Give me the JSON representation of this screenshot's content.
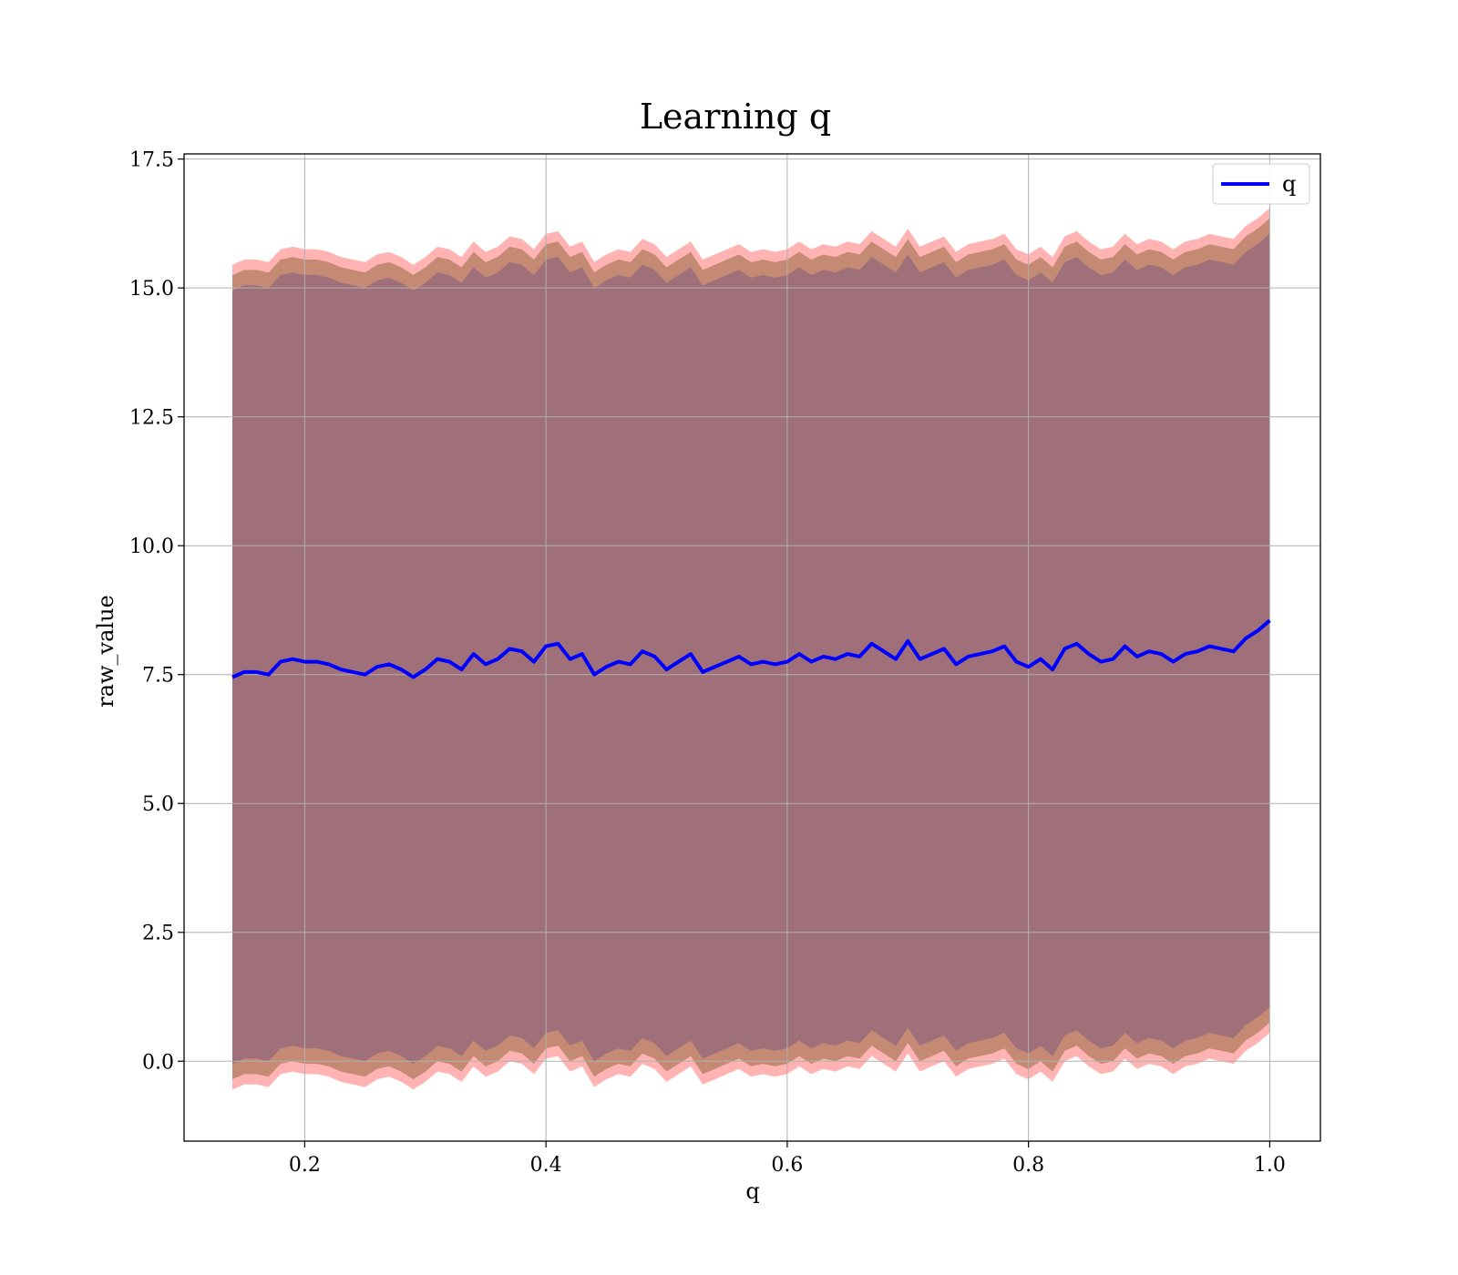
{
  "chart_data": {
    "type": "line",
    "title": "Learning q",
    "xlabel": "q",
    "ylabel": "raw_value",
    "xlim": [
      0.1,
      1.042
    ],
    "ylim": [
      -1.55,
      17.6
    ],
    "xticks": [
      0.2,
      0.4,
      0.6,
      0.8,
      1.0
    ],
    "xtick_labels": [
      "0.2",
      "0.4",
      "0.6",
      "0.8",
      "1.0"
    ],
    "yticks": [
      0.0,
      2.5,
      5.0,
      7.5,
      10.0,
      12.5,
      15.0,
      17.5
    ],
    "ytick_labels": [
      "0.0",
      "2.5",
      "5.0",
      "7.5",
      "10.0",
      "12.5",
      "15.0",
      "17.5"
    ],
    "grid": true,
    "legend": {
      "placement": "top-right",
      "entries": [
        "q"
      ]
    },
    "colors": {
      "line": "#0000ff",
      "band_outer": "#ff9a9a",
      "band_mid": "#c48a74",
      "band_inner": "#a0707a",
      "grid": "#b0b0b0"
    },
    "bands": {
      "inner_halfwidth": 7.5,
      "mid_halfwidth": 7.8,
      "outer_halfwidth": 8.0
    },
    "series": [
      {
        "name": "q",
        "x": [
          0.14,
          0.15,
          0.16,
          0.17,
          0.18,
          0.19,
          0.2,
          0.21,
          0.22,
          0.23,
          0.24,
          0.25,
          0.26,
          0.27,
          0.28,
          0.29,
          0.3,
          0.31,
          0.32,
          0.33,
          0.34,
          0.35,
          0.36,
          0.37,
          0.38,
          0.39,
          0.4,
          0.41,
          0.42,
          0.43,
          0.44,
          0.45,
          0.46,
          0.47,
          0.48,
          0.49,
          0.5,
          0.51,
          0.52,
          0.53,
          0.54,
          0.55,
          0.56,
          0.57,
          0.58,
          0.59,
          0.6,
          0.61,
          0.62,
          0.63,
          0.64,
          0.65,
          0.66,
          0.67,
          0.68,
          0.69,
          0.7,
          0.71,
          0.72,
          0.73,
          0.74,
          0.75,
          0.76,
          0.77,
          0.78,
          0.79,
          0.8,
          0.81,
          0.82,
          0.83,
          0.84,
          0.85,
          0.86,
          0.87,
          0.88,
          0.89,
          0.9,
          0.91,
          0.92,
          0.93,
          0.94,
          0.95,
          0.96,
          0.97,
          0.98,
          0.99,
          1.0
        ],
        "values": [
          7.45,
          7.55,
          7.55,
          7.5,
          7.75,
          7.8,
          7.75,
          7.75,
          7.7,
          7.6,
          7.55,
          7.5,
          7.65,
          7.7,
          7.6,
          7.45,
          7.6,
          7.8,
          7.75,
          7.6,
          7.9,
          7.7,
          7.8,
          8.0,
          7.95,
          7.75,
          8.05,
          8.1,
          7.8,
          7.9,
          7.5,
          7.65,
          7.75,
          7.7,
          7.95,
          7.85,
          7.6,
          7.75,
          7.9,
          7.55,
          7.65,
          7.75,
          7.85,
          7.7,
          7.75,
          7.7,
          7.75,
          7.9,
          7.75,
          7.85,
          7.8,
          7.9,
          7.85,
          8.1,
          7.95,
          7.8,
          8.15,
          7.8,
          7.9,
          8.0,
          7.7,
          7.85,
          7.9,
          7.95,
          8.05,
          7.75,
          7.65,
          7.8,
          7.6,
          8.0,
          8.1,
          7.9,
          7.75,
          7.8,
          8.05,
          7.85,
          7.95,
          7.9,
          7.75,
          7.9,
          7.95,
          8.05,
          8.0,
          7.95,
          8.2,
          8.35,
          8.55
        ]
      }
    ]
  }
}
